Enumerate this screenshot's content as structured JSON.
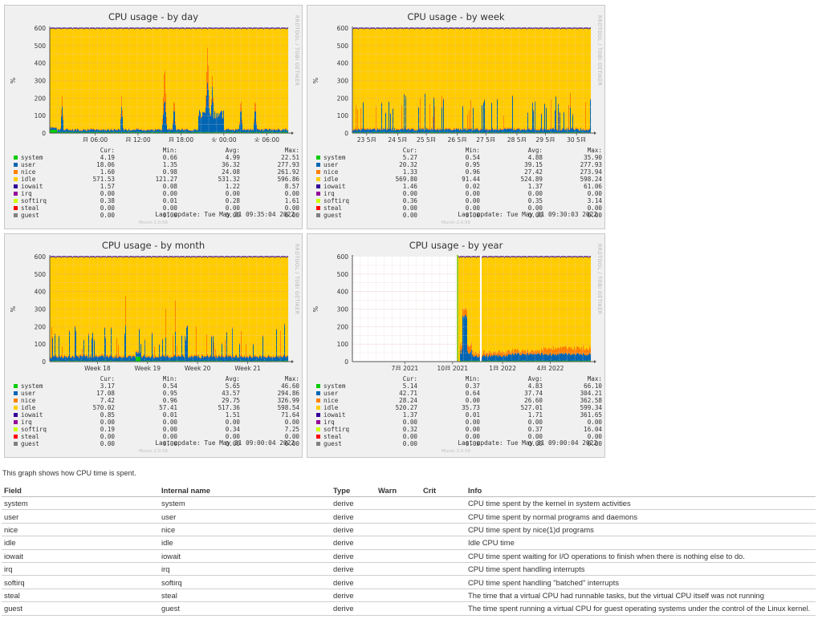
{
  "legend_header": {
    "cur": "Cur:",
    "min": "Min:",
    "avg": "Avg:",
    "max": "Max:"
  },
  "y_axis_label": "%",
  "y_ticks": [
    "0",
    "100",
    "200",
    "300",
    "400",
    "500",
    "600"
  ],
  "side_text": "RRDTOOL / TOBI OETIKER",
  "footer": "Munin 2.0.56",
  "series": [
    {
      "name": "system",
      "color": "#00cc00"
    },
    {
      "name": "user",
      "color": "#0066b3"
    },
    {
      "name": "nice",
      "color": "#ff8000"
    },
    {
      "name": "idle",
      "color": "#ffcc00"
    },
    {
      "name": "iowait",
      "color": "#330099"
    },
    {
      "name": "irq",
      "color": "#990099"
    },
    {
      "name": "softirq",
      "color": "#ccff00"
    },
    {
      "name": "steal",
      "color": "#ff0000"
    },
    {
      "name": "guest",
      "color": "#808080"
    }
  ],
  "graphs": [
    {
      "title": "CPU usage - by day",
      "x_labels": [
        "月 06:00",
        "月 12:00",
        "月 18:00",
        "火 00:00",
        "火 06:00"
      ],
      "rows": [
        [
          "4.19",
          "0.66",
          "4.99",
          "22.51"
        ],
        [
          "18.06",
          "1.35",
          "36.32",
          "277.93"
        ],
        [
          "1.60",
          "0.98",
          "24.08",
          "261.92"
        ],
        [
          "571.53",
          "121.27",
          "531.32",
          "596.86"
        ],
        [
          "1.57",
          "0.08",
          "1.22",
          "8.57"
        ],
        [
          "0.00",
          "0.00",
          "0.00",
          "0.00"
        ],
        [
          "0.38",
          "0.01",
          "0.28",
          "1.61"
        ],
        [
          "0.00",
          "0.00",
          "0.00",
          "0.00"
        ],
        [
          "0.00",
          "0.00",
          "0.00",
          "0.00"
        ]
      ],
      "last_update": "Last update: Tue May 31 09:35:04 2022"
    },
    {
      "title": "CPU usage - by week",
      "x_labels": [
        "23 5月",
        "24 5月",
        "25 5月",
        "26 5月",
        "27 5月",
        "28 5月",
        "29 5月",
        "30 5月"
      ],
      "rows": [
        [
          "5.27",
          "0.54",
          "4.88",
          "35.90"
        ],
        [
          "20.32",
          "0.95",
          "39.15",
          "277.93"
        ],
        [
          "1.33",
          "0.96",
          "27.42",
          "273.94"
        ],
        [
          "569.80",
          "91.44",
          "524.89",
          "598.24"
        ],
        [
          "1.46",
          "0.02",
          "1.37",
          "61.06"
        ],
        [
          "0.00",
          "0.00",
          "0.00",
          "0.00"
        ],
        [
          "0.36",
          "0.00",
          "0.35",
          "3.14"
        ],
        [
          "0.00",
          "0.00",
          "0.00",
          "0.00"
        ],
        [
          "0.00",
          "0.00",
          "0.00",
          "0.00"
        ]
      ],
      "last_update": "Last update: Tue May 31 09:30:03 2022"
    },
    {
      "title": "CPU usage - by month",
      "x_labels": [
        "Week 18",
        "Week 19",
        "Week 20",
        "Week 21"
      ],
      "rows": [
        [
          "3.17",
          "0.54",
          "5.65",
          "46.60"
        ],
        [
          "17.08",
          "0.95",
          "43.57",
          "294.86"
        ],
        [
          "7.42",
          "0.96",
          "29.75",
          "326.99"
        ],
        [
          "570.02",
          "57.41",
          "517.36",
          "598.54"
        ],
        [
          "0.85",
          "0.01",
          "1.51",
          "71.64"
        ],
        [
          "0.00",
          "0.00",
          "0.00",
          "0.00"
        ],
        [
          "0.19",
          "0.00",
          "0.34",
          "7.25"
        ],
        [
          "0.00",
          "0.00",
          "0.00",
          "0.00"
        ],
        [
          "0.00",
          "0.00",
          "0.00",
          "0.00"
        ]
      ],
      "last_update": "Last update: Tue May 31 09:00:04 2022"
    },
    {
      "title": "CPU usage - by year",
      "x_labels": [
        "7月 2021",
        "10月 2021",
        "1月 2022",
        "4月 2022"
      ],
      "rows": [
        [
          "5.14",
          "0.37",
          "4.83",
          "66.10"
        ],
        [
          "42.71",
          "0.64",
          "37.74",
          "304.21"
        ],
        [
          "28.24",
          "0.00",
          "26.60",
          "362.58"
        ],
        [
          "520.27",
          "35.73",
          "527.01",
          "599.34"
        ],
        [
          "1.37",
          "0.01",
          "1.71",
          "361.65"
        ],
        [
          "0.00",
          "0.00",
          "0.00",
          "0.00"
        ],
        [
          "0.32",
          "0.00",
          "0.37",
          "16.04"
        ],
        [
          "0.00",
          "0.00",
          "0.00",
          "0.00"
        ],
        [
          "0.00",
          "0.00",
          "0.00",
          "0.00"
        ]
      ],
      "last_update": "Last update: Tue May 31 09:00:04 2022"
    }
  ],
  "description": "This graph shows how CPU time is spent.",
  "table": {
    "headers": {
      "field": "Field",
      "internal": "Internal name",
      "type": "Type",
      "warn": "Warn",
      "crit": "Crit",
      "info": "Info"
    },
    "rows": [
      {
        "field": "system",
        "internal": "system",
        "type": "derive",
        "warn": "",
        "crit": "",
        "info": "CPU time spent by the kernel in system activities"
      },
      {
        "field": "user",
        "internal": "user",
        "type": "derive",
        "warn": "",
        "crit": "",
        "info": "CPU time spent by normal programs and daemons"
      },
      {
        "field": "nice",
        "internal": "nice",
        "type": "derive",
        "warn": "",
        "crit": "",
        "info": "CPU time spent by nice(1)d programs"
      },
      {
        "field": "idle",
        "internal": "idle",
        "type": "derive",
        "warn": "",
        "crit": "",
        "info": "Idle CPU time"
      },
      {
        "field": "iowait",
        "internal": "iowait",
        "type": "derive",
        "warn": "",
        "crit": "",
        "info": "CPU time spent waiting for I/O operations to finish when there is nothing else to do."
      },
      {
        "field": "irq",
        "internal": "irq",
        "type": "derive",
        "warn": "",
        "crit": "",
        "info": "CPU time spent handling interrupts"
      },
      {
        "field": "softirq",
        "internal": "softirq",
        "type": "derive",
        "warn": "",
        "crit": "",
        "info": "CPU time spent handling \"batched\" interrupts"
      },
      {
        "field": "steal",
        "internal": "steal",
        "type": "derive",
        "warn": "",
        "crit": "",
        "info": "The time that a virtual CPU had runnable tasks, but the virtual CPU itself was not running"
      },
      {
        "field": "guest",
        "internal": "guest",
        "type": "derive",
        "warn": "",
        "crit": "",
        "info": "The time spent running a virtual CPU for guest operating systems under the control of the Linux kernel."
      }
    ]
  }
}
